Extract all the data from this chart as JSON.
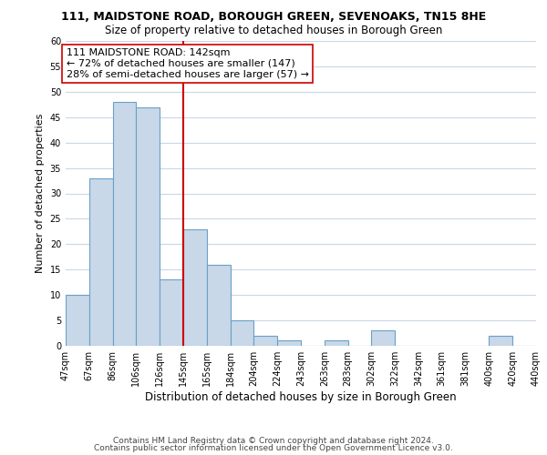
{
  "title": "111, MAIDSTONE ROAD, BOROUGH GREEN, SEVENOAKS, TN15 8HE",
  "subtitle": "Size of property relative to detached houses in Borough Green",
  "xlabel": "Distribution of detached houses by size in Borough Green",
  "ylabel": "Number of detached properties",
  "categories": [
    "47sqm",
    "67sqm",
    "86sqm",
    "106sqm",
    "126sqm",
    "145sqm",
    "165sqm",
    "184sqm",
    "204sqm",
    "224sqm",
    "243sqm",
    "263sqm",
    "283sqm",
    "302sqm",
    "322sqm",
    "342sqm",
    "361sqm",
    "381sqm",
    "400sqm",
    "420sqm",
    "440sqm"
  ],
  "bar_heights": [
    10,
    33,
    48,
    47,
    13,
    23,
    16,
    5,
    2,
    1,
    0,
    1,
    0,
    3,
    0,
    0,
    0,
    0,
    2,
    0
  ],
  "bar_color": "#c8d8e8",
  "bar_edge_color": "#6aa0c8",
  "property_bar_index": 5,
  "property_line_color": "#cc0000",
  "annotation_line1": "111 MAIDSTONE ROAD: 142sqm",
  "annotation_line2": "← 72% of detached houses are smaller (147)",
  "annotation_line3": "28% of semi-detached houses are larger (57) →",
  "annotation_box_color": "#ffffff",
  "annotation_box_edge": "#cc0000",
  "ylim": [
    0,
    60
  ],
  "yticks": [
    0,
    5,
    10,
    15,
    20,
    25,
    30,
    35,
    40,
    45,
    50,
    55,
    60
  ],
  "footer1": "Contains HM Land Registry data © Crown copyright and database right 2024.",
  "footer2": "Contains public sector information licensed under the Open Government Licence v3.0.",
  "title_fontsize": 9,
  "subtitle_fontsize": 8.5,
  "xlabel_fontsize": 8.5,
  "ylabel_fontsize": 8,
  "tick_fontsize": 7,
  "annotation_fontsize": 8,
  "footer_fontsize": 6.5,
  "grid_color": "#c8d8e8"
}
